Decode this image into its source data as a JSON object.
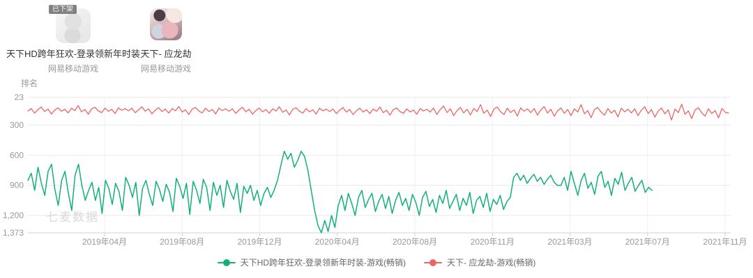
{
  "apps": [
    {
      "name": "天下HD跨年狂欢-登录领新年时装",
      "developer": "网易移动游戏",
      "badge": "已下架"
    },
    {
      "name": "天下- 应龙劫",
      "developer": "网易移动游戏"
    }
  ],
  "chart_data": {
    "type": "line",
    "ylabel": "排名",
    "watermark": "七麦数据",
    "grid": true,
    "legend_position": "bottom",
    "y_axis": {
      "inverted": true,
      "range": [
        23,
        1373
      ],
      "ticks": [
        23,
        300,
        600,
        900,
        1200,
        1373
      ],
      "tick_labels": [
        "23",
        "300",
        "600",
        "900",
        "1,200",
        "1,373"
      ]
    },
    "x_axis": {
      "tick_labels": [
        "2019年04月",
        "2019年08月",
        "2019年12月",
        "2020年04月",
        "2020年08月",
        "2020年11月",
        "2021年03月",
        "2021年07月",
        "2021年11月"
      ]
    },
    "series": [
      {
        "name": "天下HD跨年狂欢-登录领新年时装-游戏(畅销)",
        "color": "#12b077",
        "span_frac": [
          0,
          0.888
        ],
        "x_range": [
          "2018-12",
          "2021-07"
        ],
        "values": [
          850,
          780,
          950,
          720,
          880,
          1000,
          760,
          690,
          940,
          1100,
          850,
          760,
          980,
          1150,
          800,
          690,
          900,
          1050,
          950,
          870,
          1050,
          920,
          1180,
          850,
          930,
          1090,
          880,
          960,
          1150,
          820,
          900,
          1020,
          870,
          1200,
          930,
          850,
          990,
          1100,
          860,
          940,
          1060,
          890,
          970,
          1160,
          830,
          910,
          1030,
          880,
          1190,
          860,
          950,
          1080,
          840,
          920,
          1150,
          870,
          1000,
          900,
          1120,
          850,
          960,
          1040,
          880,
          1170,
          910,
          980,
          900,
          1050,
          950,
          1100,
          980,
          920,
          1020,
          950,
          850,
          700,
          560,
          640,
          580,
          720,
          650,
          560,
          610,
          750,
          950,
          1150,
          1300,
          1373,
          1250,
          1360,
          1200,
          1320,
          1100,
          1000,
          1150,
          980,
          1080,
          1200,
          1020,
          950,
          1120,
          1040,
          980,
          1160,
          1060,
          990,
          1130,
          1010,
          1180,
          1050,
          970,
          1100,
          1030,
          1150,
          990,
          1070,
          1200,
          1020,
          960,
          1110,
          1040,
          1170,
          1000,
          1080,
          950,
          1130,
          1060,
          990,
          1150,
          1030,
          1100,
          970,
          1180,
          1050,
          1010,
          1120,
          980,
          1160,
          1040,
          1090,
          1000,
          1140,
          1060,
          1020,
          820,
          780,
          850,
          800,
          880,
          830,
          790,
          860,
          820,
          890,
          840,
          800,
          870,
          900,
          900,
          820,
          950,
          760,
          880,
          1000,
          850,
          780,
          930,
          870,
          990,
          810,
          760,
          920,
          860,
          1000,
          830,
          890,
          770,
          950,
          880,
          820,
          960,
          900,
          850,
          970,
          920,
          950
        ]
      },
      {
        "name": "天下- 应龙劫-游戏(畅销)",
        "color": "#ee6462",
        "span_frac": [
          0,
          0.997
        ],
        "x_range": [
          "2018-12",
          "2021-11"
        ],
        "values": [
          160,
          135,
          180,
          145,
          120,
          165,
          140,
          190,
          150,
          128,
          162,
          142,
          178,
          132,
          155,
          105,
          168,
          145,
          192,
          138,
          122,
          158,
          175,
          130,
          163,
          143,
          186,
          128,
          152,
          136,
          158,
          132,
          176,
          148,
          118,
          162,
          138,
          188,
          152,
          126,
          165,
          140,
          180,
          135,
          158,
          115,
          170,
          148,
          195,
          140,
          125,
          160,
          178,
          132,
          165,
          145,
          188,
          130,
          155,
          138,
          162,
          138,
          182,
          150,
          122,
          168,
          142,
          192,
          155,
          130,
          168,
          144,
          182,
          138,
          160,
          118,
          172,
          150,
          198,
          142,
          128,
          162,
          180,
          135,
          168,
          148,
          190,
          132,
          158,
          140,
          165,
          140,
          185,
          152,
          125,
          170,
          145,
          195,
          158,
          132,
          170,
          146,
          185,
          140,
          162,
          120,
          175,
          152,
          200,
          145,
          130,
          165,
          182,
          138,
          170,
          150,
          192,
          135,
          160,
          142,
          170,
          130,
          195,
          145,
          110,
          175,
          138,
          205,
          155,
          125,
          178,
          142,
          198,
          135,
          165,
          96,
          182,
          150,
          215,
          140,
          120,
          168,
          195,
          132,
          175,
          148,
          210,
          128,
          162,
          138,
          175,
          135,
          200,
          148,
          115,
          180,
          142,
          212,
          158,
          128,
          182,
          145,
          205,
          138,
          170,
          95,
          188,
          155,
          225,
          145,
          125,
          172,
          200,
          135,
          180,
          152,
          218,
          132,
          168,
          142,
          178,
          138,
          205,
          150,
          118,
          185,
          145,
          220,
          160,
          130,
          188,
          148,
          250,
          140,
          175,
          92,
          192,
          158,
          235,
          148,
          128,
          178,
          210,
          138,
          185,
          155,
          228,
          135,
          172,
          180
        ]
      }
    ]
  },
  "colors": {
    "series_teal": "#12b077",
    "series_red": "#ee6462",
    "grid_line": "#e9e9e9",
    "axis_line": "#d2d2d2",
    "axis_text": "#999999"
  }
}
